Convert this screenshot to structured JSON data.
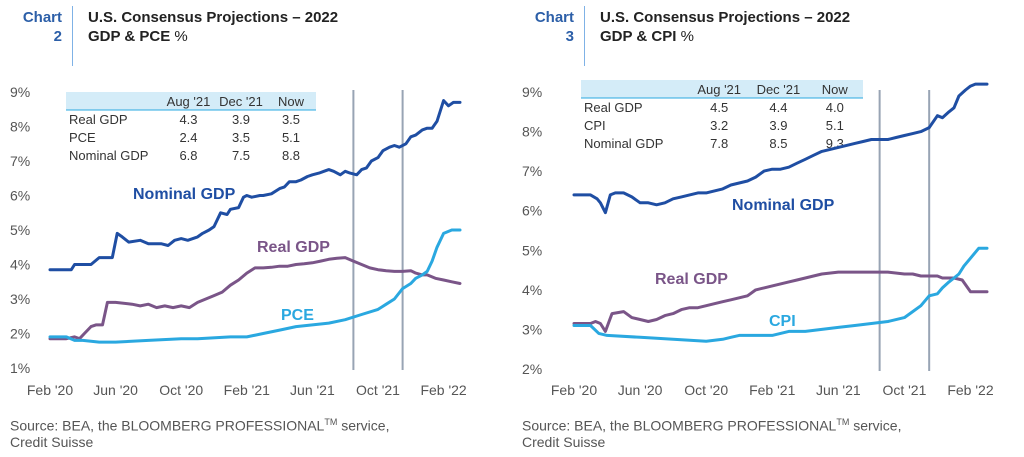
{
  "colors": {
    "nominal": "#1f4ea3",
    "real": "#7a5588",
    "pce": "#2aa8e0",
    "vline": "#98a4b4",
    "tag": "#2c5fa8",
    "table_header": "#d4ecf8"
  },
  "charts": [
    {
      "tag_line1": "Chart",
      "tag_line2": "2",
      "title_line1": "U.S. Consensus Projections – 2022",
      "title_line2": "GDP & PCE",
      "title_unit": "%",
      "source_line1_a": "Source: BEA, the BLOOMBERG PROFESSIONAL",
      "source_tm": "TM",
      "source_line1_b": " service,",
      "source_line2": "Credit Suisse",
      "table": {
        "headers": [
          "",
          "Aug '21",
          "Dec '21",
          "Now"
        ],
        "rows": [
          [
            "Real GDP",
            "4.3",
            "3.9",
            "3.5"
          ],
          [
            "PCE",
            "2.4",
            "3.5",
            "5.1"
          ],
          [
            "Nominal GDP",
            "6.8",
            "7.5",
            "8.8"
          ]
        ]
      }
    },
    {
      "tag_line1": "Chart",
      "tag_line2": "3",
      "title_line1": "U.S. Consensus Projections – 2022",
      "title_line2": "GDP & CPI",
      "title_unit": "%",
      "source_line1_a": "Source: BEA, the BLOOMBERG PROFESSIONAL",
      "source_tm": "TM",
      "source_line1_b": " service,",
      "source_line2": "Credit Suisse",
      "table": {
        "headers": [
          "",
          "Aug '21",
          "Dec '21",
          "Now"
        ],
        "rows": [
          [
            "Real GDP",
            "4.5",
            "4.4",
            "4.0"
          ],
          [
            "CPI",
            "3.2",
            "3.9",
            "5.1"
          ],
          [
            "Nominal GDP",
            "7.8",
            "8.5",
            "9.3"
          ]
        ]
      }
    }
  ],
  "chart_data": [
    {
      "type": "line",
      "title": "U.S. Consensus Projections – 2022 GDP & PCE",
      "ylabel": "%",
      "xlim": [
        0,
        25
      ],
      "ylim": [
        1,
        9
      ],
      "yticks": [
        1,
        2,
        3,
        4,
        5,
        6,
        7,
        8,
        9
      ],
      "ytick_labels": [
        "1%",
        "2%",
        "3%",
        "4%",
        "5%",
        "6%",
        "7%",
        "8%",
        "9%"
      ],
      "x_ticks": [
        0,
        4,
        8,
        12,
        16,
        20,
        24
      ],
      "x_tick_labels": [
        "Feb '20",
        "Jun '20",
        "Oct '20",
        "Feb '21",
        "Jun '21",
        "Oct '21",
        "Feb '22"
      ],
      "vlines": [
        18.5,
        21.5
      ],
      "grid": false,
      "series": [
        {
          "name": "Nominal GDP",
          "color": "#1f4ea3",
          "x": [
            0,
            1.3,
            1.5,
            2.5,
            3,
            3.8,
            4.1,
            4.4,
            4.8,
            5.5,
            6,
            6.4,
            6.8,
            7.2,
            7.6,
            8,
            8.4,
            9,
            9.3,
            9.7,
            10,
            10.4,
            10.8,
            11,
            11.5,
            11.8,
            12,
            12.3,
            12.8,
            13,
            13.5,
            14,
            14.3,
            14.6,
            15,
            15.3,
            15.7,
            16,
            16.4,
            16.7,
            17,
            17.3,
            17.7,
            18,
            18.3,
            18.7,
            19,
            19.3,
            19.6,
            20,
            20.3,
            20.7,
            21,
            21.3,
            21.7,
            22,
            22.3,
            22.7,
            23,
            23.3,
            23.6,
            24,
            24.3,
            24.6,
            25
          ],
          "y": [
            3.85,
            3.85,
            4.0,
            4.0,
            4.2,
            4.2,
            4.9,
            4.8,
            4.65,
            4.7,
            4.6,
            4.6,
            4.6,
            4.55,
            4.7,
            4.75,
            4.7,
            4.8,
            4.9,
            5.0,
            5.1,
            5.5,
            5.45,
            5.6,
            5.65,
            5.95,
            6.0,
            5.95,
            6.0,
            6.0,
            6.05,
            6.2,
            6.25,
            6.4,
            6.4,
            6.45,
            6.55,
            6.6,
            6.65,
            6.7,
            6.75,
            6.7,
            6.6,
            6.7,
            6.65,
            6.6,
            6.75,
            6.8,
            7.0,
            7.1,
            7.3,
            7.4,
            7.45,
            7.4,
            7.5,
            7.7,
            7.75,
            7.9,
            7.95,
            7.95,
            8.15,
            8.75,
            8.6,
            8.7,
            8.7
          ]
        },
        {
          "name": "Real GDP",
          "color": "#7a5588",
          "x": [
            0,
            1,
            1.5,
            1.8,
            2.1,
            2.5,
            2.8,
            3.2,
            3.5,
            4,
            5,
            5.5,
            6,
            6.5,
            7,
            7.5,
            8,
            8.5,
            9,
            9.5,
            10,
            10.5,
            11,
            11.5,
            12,
            12.5,
            13,
            13.5,
            14,
            14.5,
            15,
            15.5,
            16,
            16.5,
            17,
            17.5,
            18,
            18.5,
            19,
            19.5,
            20,
            20.5,
            21,
            21.5,
            22,
            22.3,
            22.7,
            23,
            23.5,
            24,
            24.5,
            25
          ],
          "y": [
            1.85,
            1.85,
            1.9,
            1.85,
            2.0,
            2.2,
            2.25,
            2.25,
            2.9,
            2.9,
            2.85,
            2.8,
            2.85,
            2.75,
            2.8,
            2.75,
            2.8,
            2.75,
            2.9,
            3.0,
            3.1,
            3.2,
            3.4,
            3.55,
            3.75,
            3.9,
            3.9,
            3.92,
            3.95,
            3.95,
            4.0,
            4.02,
            4.05,
            4.1,
            4.15,
            4.18,
            4.2,
            4.1,
            4.0,
            3.9,
            3.85,
            3.82,
            3.8,
            3.8,
            3.82,
            3.75,
            3.7,
            3.7,
            3.6,
            3.55,
            3.5,
            3.45
          ]
        },
        {
          "name": "PCE",
          "color": "#2aa8e0",
          "x": [
            0,
            1,
            1.5,
            2,
            3,
            4,
            6,
            8,
            9,
            11,
            12,
            13,
            14,
            15,
            16,
            17,
            18,
            19,
            20,
            20.5,
            21,
            21.5,
            22,
            22.3,
            22.7,
            23,
            23.3,
            23.6,
            24,
            24.5,
            25
          ],
          "y": [
            1.9,
            1.9,
            1.8,
            1.8,
            1.75,
            1.75,
            1.8,
            1.85,
            1.85,
            1.9,
            1.9,
            2.0,
            2.1,
            2.2,
            2.25,
            2.3,
            2.4,
            2.55,
            2.7,
            2.85,
            3.0,
            3.3,
            3.45,
            3.6,
            3.7,
            3.8,
            4.1,
            4.5,
            4.9,
            5.0,
            5.0
          ]
        }
      ],
      "annotations": [
        "Nominal GDP",
        "Real GDP",
        "PCE"
      ]
    },
    {
      "type": "line",
      "title": "U.S. Consensus Projections – 2022 GDP & CPI",
      "ylabel": "%",
      "xlim": [
        0,
        25
      ],
      "ylim": [
        2,
        9.5
      ],
      "yticks": [
        2,
        3,
        4,
        5,
        6,
        7,
        8,
        9
      ],
      "ytick_labels": [
        "2%",
        "3%",
        "4%",
        "5%",
        "6%",
        "7%",
        "8%",
        "9%"
      ],
      "x_ticks": [
        0,
        4,
        8,
        12,
        16,
        20,
        24
      ],
      "x_tick_labels": [
        "Feb '20",
        "Jun '20",
        "Oct '20",
        "Feb '21",
        "Jun '21",
        "Oct '21",
        "Feb '22"
      ],
      "vlines": [
        18.5,
        21.5
      ],
      "grid": false,
      "series": [
        {
          "name": "Nominal GDP",
          "color": "#1f4ea3",
          "x": [
            0,
            1,
            1.4,
            1.6,
            1.9,
            2.2,
            2.5,
            3,
            3.5,
            4,
            4.5,
            5,
            5.5,
            6,
            6.5,
            7,
            7.5,
            8,
            8.5,
            9,
            9.5,
            10,
            10.5,
            11,
            11.5,
            12,
            12.5,
            13,
            13.5,
            14,
            14.5,
            15,
            15.5,
            16,
            16.5,
            17,
            17.5,
            18,
            18.5,
            19,
            19.5,
            20,
            20.5,
            21,
            21.5,
            22,
            22.3,
            22.7,
            23,
            23.3,
            23.7,
            24,
            24.3,
            24.6,
            25
          ],
          "y": [
            6.4,
            6.4,
            6.3,
            6.2,
            5.95,
            6.4,
            6.45,
            6.45,
            6.35,
            6.2,
            6.2,
            6.15,
            6.2,
            6.3,
            6.35,
            6.4,
            6.45,
            6.45,
            6.5,
            6.55,
            6.65,
            6.7,
            6.75,
            6.85,
            7.0,
            7.05,
            7.05,
            7.1,
            7.2,
            7.3,
            7.4,
            7.5,
            7.55,
            7.6,
            7.65,
            7.7,
            7.75,
            7.8,
            7.8,
            7.8,
            7.85,
            7.9,
            7.95,
            8.0,
            8.1,
            8.4,
            8.35,
            8.5,
            8.6,
            8.9,
            9.05,
            9.15,
            9.2,
            9.2,
            9.2
          ]
        },
        {
          "name": "Real GDP",
          "color": "#7a5588",
          "x": [
            0,
            1,
            1.3,
            1.6,
            1.9,
            2.3,
            3,
            3.5,
            4,
            4.5,
            5,
            5.5,
            6,
            6.5,
            7,
            7.5,
            8,
            8.5,
            9,
            9.5,
            10,
            10.5,
            11,
            11.5,
            12,
            12.5,
            13,
            13.5,
            14,
            14.5,
            15,
            16,
            17,
            18,
            19,
            20,
            20.5,
            21,
            21.5,
            22,
            22.3,
            22.7,
            23,
            23.5,
            24,
            24.5,
            25
          ],
          "y": [
            3.15,
            3.15,
            3.2,
            3.15,
            2.95,
            3.4,
            3.45,
            3.3,
            3.25,
            3.2,
            3.25,
            3.35,
            3.4,
            3.5,
            3.55,
            3.55,
            3.6,
            3.65,
            3.7,
            3.75,
            3.8,
            3.85,
            4.0,
            4.05,
            4.1,
            4.15,
            4.2,
            4.25,
            4.3,
            4.35,
            4.4,
            4.45,
            4.45,
            4.45,
            4.45,
            4.4,
            4.4,
            4.35,
            4.35,
            4.35,
            4.3,
            4.3,
            4.3,
            4.25,
            3.95,
            3.95,
            3.95
          ]
        },
        {
          "name": "CPI",
          "color": "#2aa8e0",
          "x": [
            0,
            1,
            1.5,
            2,
            4,
            6,
            8,
            9,
            9.5,
            10,
            11,
            12,
            12.5,
            13,
            14,
            15,
            16,
            17,
            18,
            19,
            20,
            20.5,
            21,
            21.5,
            22,
            22.3,
            22.7,
            23,
            23.3,
            23.6,
            24,
            24.5,
            25
          ],
          "y": [
            3.1,
            3.1,
            2.9,
            2.85,
            2.8,
            2.75,
            2.7,
            2.75,
            2.8,
            2.85,
            2.85,
            2.85,
            2.9,
            2.95,
            2.95,
            3.0,
            3.05,
            3.1,
            3.15,
            3.2,
            3.3,
            3.45,
            3.6,
            3.85,
            3.9,
            4.05,
            4.2,
            4.3,
            4.4,
            4.6,
            4.8,
            5.05,
            5.05
          ]
        }
      ],
      "annotations": [
        "Nominal GDP",
        "Real GDP",
        "CPI"
      ]
    }
  ]
}
